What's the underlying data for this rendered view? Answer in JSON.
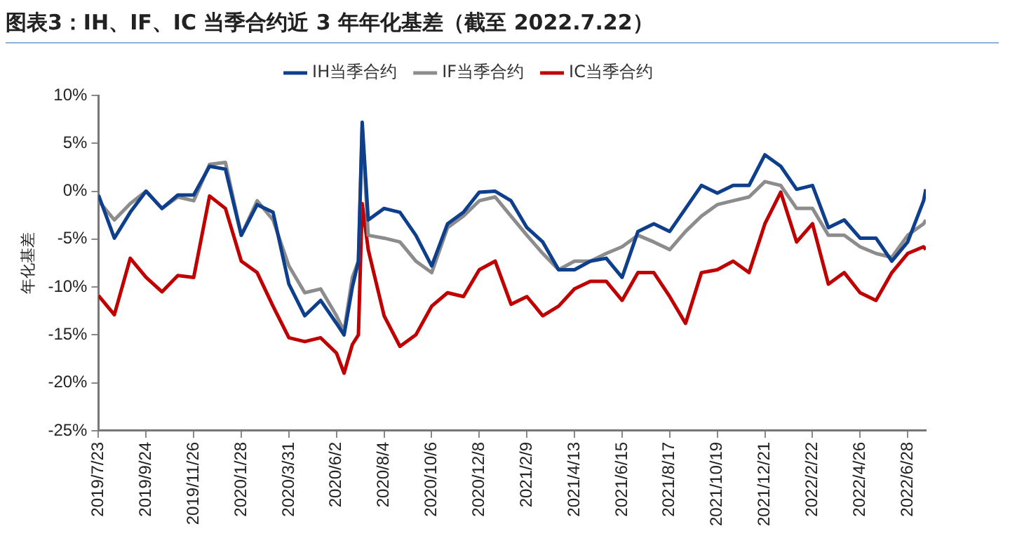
{
  "chart_data": {
    "type": "line",
    "title": "图表3：IH、IF、IC 当季合约近 3 年年化基差（截至 2022.7.22）",
    "ylabel": "年化基差",
    "x": [
      "2019-07-23",
      "2019-08-13",
      "2019-09-03",
      "2019-09-24",
      "2019-10-15",
      "2019-11-05",
      "2019-11-26",
      "2019-12-17",
      "2020-01-07",
      "2020-01-28",
      "2020-02-18",
      "2020-03-10",
      "2020-03-31",
      "2020-04-21",
      "2020-05-12",
      "2020-06-02",
      "2020-06-12",
      "2020-06-23",
      "2020-07-01",
      "2020-07-06",
      "2020-07-14",
      "2020-08-04",
      "2020-08-25",
      "2020-09-15",
      "2020-10-06",
      "2020-10-27",
      "2020-11-17",
      "2020-12-08",
      "2020-12-29",
      "2021-01-19",
      "2021-02-09",
      "2021-03-02",
      "2021-03-23",
      "2021-04-13",
      "2021-05-04",
      "2021-05-25",
      "2021-06-15",
      "2021-07-06",
      "2021-07-27",
      "2021-08-17",
      "2021-09-07",
      "2021-09-28",
      "2021-10-19",
      "2021-11-09",
      "2021-11-30",
      "2021-12-21",
      "2022-01-11",
      "2022-02-01",
      "2022-02-22",
      "2022-03-15",
      "2022-04-05",
      "2022-04-26",
      "2022-05-17",
      "2022-06-07",
      "2022-06-28",
      "2022-07-19",
      "2022-07-22"
    ],
    "series": [
      {
        "name": "IH当季合约",
        "color": "#0d3f8c",
        "values": [
          -0.4,
          -4.9,
          -2.2,
          0,
          -1.8,
          -0.4,
          -0.4,
          2.6,
          2.3,
          -4.6,
          -1.4,
          -2.2,
          -9.7,
          -13,
          -11.4,
          -13.8,
          -15,
          -10,
          -7.3,
          7.2,
          -3,
          -1.8,
          -2.2,
          -4.6,
          -7.8,
          -3.4,
          -2.2,
          -0.1,
          0,
          -1,
          -3.8,
          -5.3,
          -8.2,
          -8.2,
          -7.3,
          -7,
          -9,
          -4.2,
          -3.4,
          -4.2,
          -1.8,
          0.6,
          -0.2,
          0.6,
          0.6,
          3.8,
          2.6,
          0.2,
          0.6,
          -3.8,
          -3,
          -4.9,
          -4.9,
          -7.3,
          -5.3,
          -1,
          0.2
        ]
      },
      {
        "name": "IF当季合约",
        "color": "#8c8c8c",
        "values": [
          -1,
          -3,
          -1.3,
          0,
          -1.8,
          -0.6,
          -1,
          2.8,
          3,
          -4.6,
          -1,
          -3,
          -7.8,
          -10.6,
          -10.2,
          -13,
          -14.6,
          -9,
          -7.3,
          6.7,
          -4.6,
          -4.9,
          -5.3,
          -7.3,
          -8.5,
          -3.8,
          -2.6,
          -1,
          -0.6,
          -2.6,
          -4.6,
          -6.5,
          -8.2,
          -7.3,
          -7.3,
          -6.5,
          -5.8,
          -4.6,
          -5.3,
          -6.1,
          -4.2,
          -2.6,
          -1.4,
          -1,
          -0.6,
          1,
          0.6,
          -1.8,
          -1.8,
          -4.6,
          -4.6,
          -5.8,
          -6.5,
          -6.9,
          -4.6,
          -3.4,
          -3
        ]
      },
      {
        "name": "IC当季合约",
        "color": "#c00000",
        "values": [
          -10.9,
          -12.9,
          -7,
          -9,
          -10.5,
          -8.8,
          -9,
          -0.5,
          -1.8,
          -7.3,
          -8.5,
          -12,
          -15.3,
          -15.7,
          -15.3,
          -16.9,
          -19,
          -16,
          -15,
          -1.3,
          -6.1,
          -13,
          -16.2,
          -15,
          -12,
          -10.6,
          -11,
          -8.2,
          -7.3,
          -11.8,
          -11,
          -13,
          -12,
          -10.2,
          -9.4,
          -9.4,
          -11.4,
          -8.5,
          -8.5,
          -11,
          -13.8,
          -8.5,
          -8.2,
          -7.3,
          -8.5,
          -3.4,
          -0.1,
          -5.3,
          -3.4,
          -9.7,
          -8.5,
          -10.6,
          -11.4,
          -8.5,
          -6.5,
          -5.8,
          -6.1
        ]
      }
    ],
    "xlim": [
      "2019-07-23",
      "2022-07-22"
    ],
    "xticks": [
      {
        "value": "2019-07-23",
        "label": "2019/7/23"
      },
      {
        "value": "2019-09-24",
        "label": "2019/9/24"
      },
      {
        "value": "2019-11-26",
        "label": "2019/11/26"
      },
      {
        "value": "2020-01-28",
        "label": "2020/1/28"
      },
      {
        "value": "2020-03-31",
        "label": "2020/3/31"
      },
      {
        "value": "2020-06-02",
        "label": "2020/6/2"
      },
      {
        "value": "2020-08-04",
        "label": "2020/8/4"
      },
      {
        "value": "2020-10-06",
        "label": "2020/10/6"
      },
      {
        "value": "2020-12-08",
        "label": "2020/12/8"
      },
      {
        "value": "2021-02-09",
        "label": "2021/2/9"
      },
      {
        "value": "2021-04-13",
        "label": "2021/4/13"
      },
      {
        "value": "2021-06-15",
        "label": "2021/6/15"
      },
      {
        "value": "2021-08-17",
        "label": "2021/8/17"
      },
      {
        "value": "2021-10-19",
        "label": "2021/10/19"
      },
      {
        "value": "2021-12-21",
        "label": "2021/12/21"
      },
      {
        "value": "2022-02-22",
        "label": "2022/2/22"
      },
      {
        "value": "2022-04-26",
        "label": "2022/4/26"
      },
      {
        "value": "2022-06-28",
        "label": "2022/6/28"
      }
    ],
    "ylim": [
      -25,
      10
    ],
    "yticks": [
      {
        "value": -25,
        "label": "-25%"
      },
      {
        "value": -20,
        "label": "-20%"
      },
      {
        "value": -15,
        "label": "-15%"
      },
      {
        "value": -10,
        "label": "-10%"
      },
      {
        "value": -5,
        "label": "-5%"
      },
      {
        "value": 0,
        "label": "0%"
      },
      {
        "value": 5,
        "label": "5%"
      },
      {
        "value": 10,
        "label": "10%"
      }
    ],
    "grid": false,
    "legend": "top",
    "marker": "none",
    "line_style": "solid"
  }
}
